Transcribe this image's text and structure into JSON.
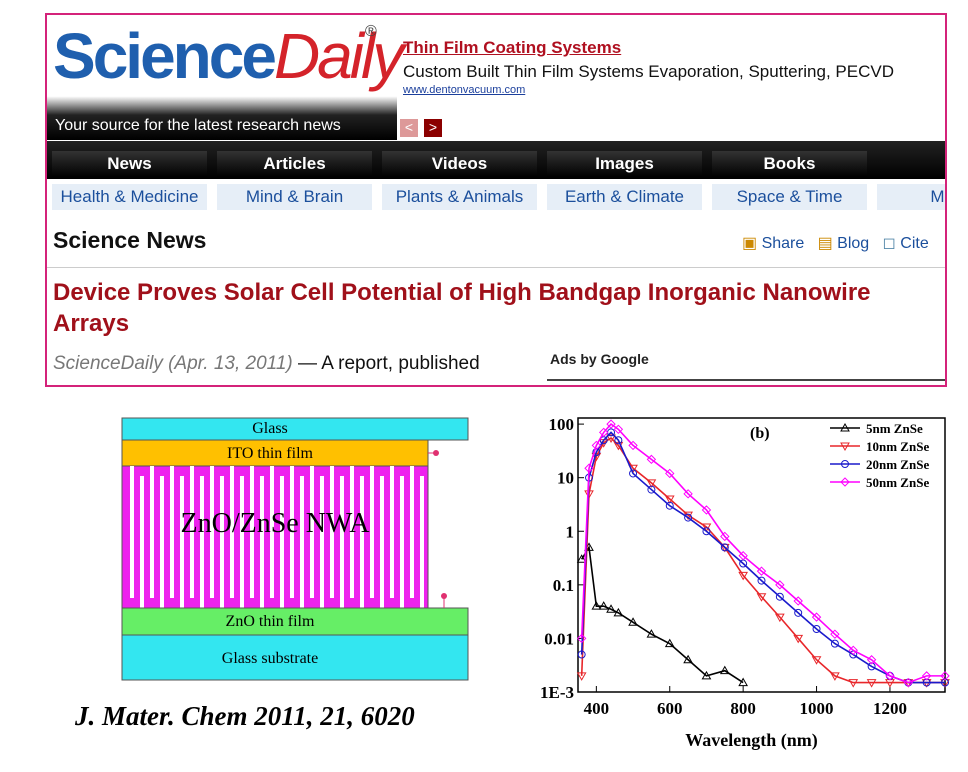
{
  "header": {
    "logo_science": "Science",
    "logo_daily": "Daily",
    "logo_mark": "®",
    "tagline": "Your source for the latest research news"
  },
  "ad": {
    "title": "Thin Film Coating Systems",
    "text": "Custom Built Thin Film Systems Evaporation, Sputtering, PECVD",
    "url": "www.dentonvacuum.com"
  },
  "nav": {
    "tabs": [
      "News",
      "Articles",
      "Videos",
      "Images",
      "Books"
    ],
    "subtabs": [
      "Health & Medicine",
      "Mind & Brain",
      "Plants & Animals",
      "Earth & Climate",
      "Space & Time",
      "Matter"
    ]
  },
  "section": {
    "title": "Science News",
    "tools": [
      "Share",
      "Blog",
      "Cite"
    ]
  },
  "article": {
    "headline": "Device Proves Solar Cell Potential of High Bandgap Inorganic Nanowire Arrays",
    "source": "ScienceDaily (Apr. 13, 2011)",
    "lead": "— A report, published",
    "ads_label": "Ads by Google"
  },
  "diagram": {
    "layers": [
      "Glass",
      "ITO thin film",
      "ZnO/ZnSe NWA",
      "ZnO thin film",
      "Glass substrate"
    ],
    "citation": "J. Mater. Chem 2011, 21, 6020"
  },
  "chart_data": {
    "type": "line",
    "annotation": "(b)",
    "x_label": "Wavelength (nm)",
    "yscale": "log",
    "x": [
      360,
      380,
      400,
      420,
      440,
      460,
      500,
      550,
      600,
      650,
      700,
      750,
      800,
      850,
      900,
      950,
      1000,
      1050,
      1100,
      1150,
      1200,
      1250,
      1300,
      1350
    ],
    "xlim": [
      350,
      1350
    ],
    "xticks": [
      400,
      600,
      800,
      1000,
      1200
    ],
    "ylim": [
      0.001,
      130
    ],
    "yticks": [
      {
        "value": 0.001,
        "label": "1E-3"
      },
      0.01,
      0.1,
      1,
      10,
      100
    ],
    "legend": "upper right",
    "series": [
      {
        "name": "5nm ZnSe",
        "color": "#000000",
        "marker": "triangle",
        "values": [
          0.3,
          0.5,
          0.04,
          0.04,
          0.035,
          0.03,
          0.02,
          0.012,
          0.008,
          0.004,
          0.002,
          0.0025,
          0.0015,
          null,
          null,
          null,
          null,
          null,
          null,
          null,
          null,
          null,
          null,
          null
        ]
      },
      {
        "name": "10nm ZnSe",
        "color": "#e8262a",
        "marker": "down-triangle",
        "values": [
          0.002,
          5,
          25,
          45,
          55,
          40,
          15,
          8,
          4,
          2,
          1.2,
          0.5,
          0.15,
          0.06,
          0.025,
          0.01,
          0.004,
          0.002,
          0.0015,
          0.0015,
          0.0015,
          0.0015,
          0.0015,
          0.0015
        ]
      },
      {
        "name": "20nm ZnSe",
        "color": "#1a1acc",
        "marker": "circle",
        "values": [
          0.005,
          10,
          30,
          50,
          70,
          50,
          12,
          6,
          3,
          1.8,
          1,
          0.5,
          0.25,
          0.12,
          0.06,
          0.03,
          0.015,
          0.008,
          0.005,
          0.003,
          0.002,
          0.0015,
          0.0015,
          0.0015
        ]
      },
      {
        "name": "50nm ZnSe",
        "color": "#ff00ff",
        "marker": "diamond",
        "values": [
          0.01,
          15,
          40,
          70,
          100,
          80,
          40,
          22,
          12,
          5,
          2.5,
          0.8,
          0.35,
          0.18,
          0.1,
          0.05,
          0.025,
          0.012,
          0.006,
          0.004,
          0.002,
          0.0015,
          0.002,
          0.002
        ]
      }
    ]
  }
}
